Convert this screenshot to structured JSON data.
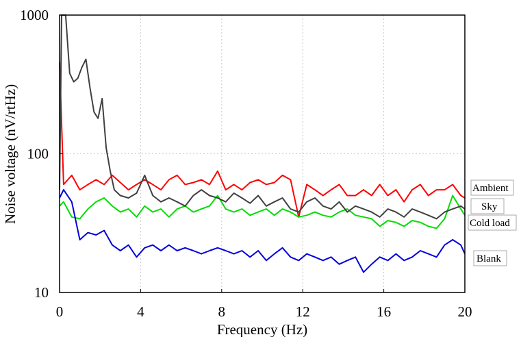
{
  "chart_data": {
    "type": "line",
    "title": "",
    "xlabel": "Frequency (Hz)",
    "ylabel": "Noise voltage (nV/rtHz)",
    "xlim": [
      0,
      20
    ],
    "ylim": [
      10,
      1000
    ],
    "yscale": "log",
    "x_ticks": [
      "0",
      "4",
      "8",
      "12",
      "16",
      "20"
    ],
    "y_ticks": [
      "10",
      "100",
      "1000"
    ],
    "grid": true,
    "legend_position": "right",
    "series": [
      {
        "name": "Ambient",
        "color": "#ff0000",
        "x": [
          0,
          0.2,
          0.6,
          1.0,
          1.4,
          1.8,
          2.2,
          2.6,
          3.0,
          3.4,
          3.8,
          4.2,
          4.6,
          5.0,
          5.4,
          5.8,
          6.2,
          6.6,
          7.0,
          7.4,
          7.8,
          8.2,
          8.6,
          9.0,
          9.4,
          9.8,
          10.2,
          10.6,
          11.0,
          11.4,
          11.8,
          12.2,
          12.6,
          13.0,
          13.4,
          13.8,
          14.2,
          14.6,
          15.0,
          15.4,
          15.8,
          16.2,
          16.6,
          17.0,
          17.4,
          17.8,
          18.2,
          18.6,
          19.0,
          19.4,
          19.8,
          20.0
        ],
        "values": [
          460,
          60,
          70,
          55,
          60,
          65,
          60,
          70,
          62,
          55,
          60,
          65,
          60,
          55,
          65,
          70,
          60,
          62,
          65,
          60,
          75,
          55,
          60,
          55,
          62,
          65,
          60,
          62,
          70,
          65,
          35,
          60,
          55,
          50,
          55,
          60,
          50,
          50,
          55,
          50,
          60,
          50,
          55,
          45,
          55,
          60,
          50,
          55,
          55,
          60,
          50,
          48
        ]
      },
      {
        "name": "Sky",
        "color": "#404040",
        "x": [
          0,
          0.1,
          0.3,
          0.5,
          0.7,
          0.9,
          1.1,
          1.3,
          1.5,
          1.7,
          1.9,
          2.1,
          2.3,
          2.5,
          2.7,
          3.0,
          3.4,
          3.8,
          4.2,
          4.6,
          5.0,
          5.4,
          5.8,
          6.2,
          6.6,
          7.0,
          7.4,
          7.8,
          8.2,
          8.6,
          9.0,
          9.4,
          9.8,
          10.2,
          10.6,
          11.0,
          11.4,
          11.8,
          12.2,
          12.6,
          13.0,
          13.4,
          13.8,
          14.2,
          14.6,
          15.0,
          15.4,
          15.8,
          16.2,
          16.6,
          17.0,
          17.4,
          17.8,
          18.2,
          18.6,
          19.0,
          19.4,
          19.8,
          20.0
        ],
        "values": [
          55,
          1000,
          1000,
          380,
          330,
          350,
          420,
          480,
          300,
          200,
          180,
          250,
          110,
          75,
          55,
          50,
          48,
          52,
          70,
          50,
          45,
          48,
          45,
          42,
          50,
          55,
          50,
          48,
          45,
          52,
          48,
          44,
          50,
          42,
          45,
          48,
          40,
          38,
          45,
          48,
          42,
          40,
          45,
          38,
          42,
          40,
          38,
          35,
          40,
          38,
          35,
          40,
          38,
          36,
          34,
          38,
          40,
          42,
          40
        ]
      },
      {
        "name": "Cold load",
        "color": "#00dd00",
        "x": [
          0,
          0.2,
          0.6,
          1.0,
          1.4,
          1.8,
          2.2,
          2.6,
          3.0,
          3.4,
          3.8,
          4.2,
          4.6,
          5.0,
          5.4,
          5.8,
          6.2,
          6.6,
          7.0,
          7.4,
          7.8,
          8.2,
          8.6,
          9.0,
          9.4,
          9.8,
          10.2,
          10.6,
          11.0,
          11.4,
          11.8,
          12.2,
          12.6,
          13.0,
          13.4,
          13.8,
          14.2,
          14.6,
          15.0,
          15.4,
          15.8,
          16.2,
          16.6,
          17.0,
          17.4,
          17.8,
          18.2,
          18.6,
          19.0,
          19.4,
          19.8,
          20.0
        ],
        "values": [
          42,
          45,
          35,
          34,
          40,
          45,
          48,
          42,
          38,
          40,
          35,
          42,
          38,
          40,
          35,
          40,
          42,
          38,
          40,
          42,
          50,
          40,
          38,
          40,
          36,
          38,
          40,
          36,
          40,
          38,
          35,
          36,
          38,
          36,
          35,
          38,
          40,
          36,
          35,
          34,
          30,
          33,
          32,
          30,
          33,
          32,
          30,
          29,
          34,
          50,
          40,
          36
        ]
      },
      {
        "name": "Blank",
        "color": "#0000dd",
        "x": [
          0,
          0.2,
          0.6,
          1.0,
          1.4,
          1.8,
          2.2,
          2.6,
          3.0,
          3.4,
          3.8,
          4.2,
          4.6,
          5.0,
          5.4,
          5.8,
          6.2,
          6.6,
          7.0,
          7.4,
          7.8,
          8.2,
          8.6,
          9.0,
          9.4,
          9.8,
          10.2,
          10.6,
          11.0,
          11.4,
          11.8,
          12.2,
          12.6,
          13.0,
          13.4,
          13.8,
          14.2,
          14.6,
          15.0,
          15.4,
          15.8,
          16.2,
          16.6,
          17.0,
          17.4,
          17.8,
          18.2,
          18.6,
          19.0,
          19.4,
          19.8,
          20.0
        ],
        "values": [
          48,
          55,
          45,
          24,
          27,
          26,
          28,
          22,
          20,
          22,
          18,
          21,
          22,
          20,
          22,
          20,
          21,
          20,
          19,
          20,
          21,
          20,
          19,
          20,
          18,
          20,
          17,
          19,
          21,
          18,
          17,
          19,
          18,
          17,
          18,
          16,
          17,
          18,
          14,
          16,
          18,
          17,
          19,
          17,
          18,
          20,
          19,
          18,
          22,
          24,
          22,
          19
        ]
      }
    ]
  }
}
